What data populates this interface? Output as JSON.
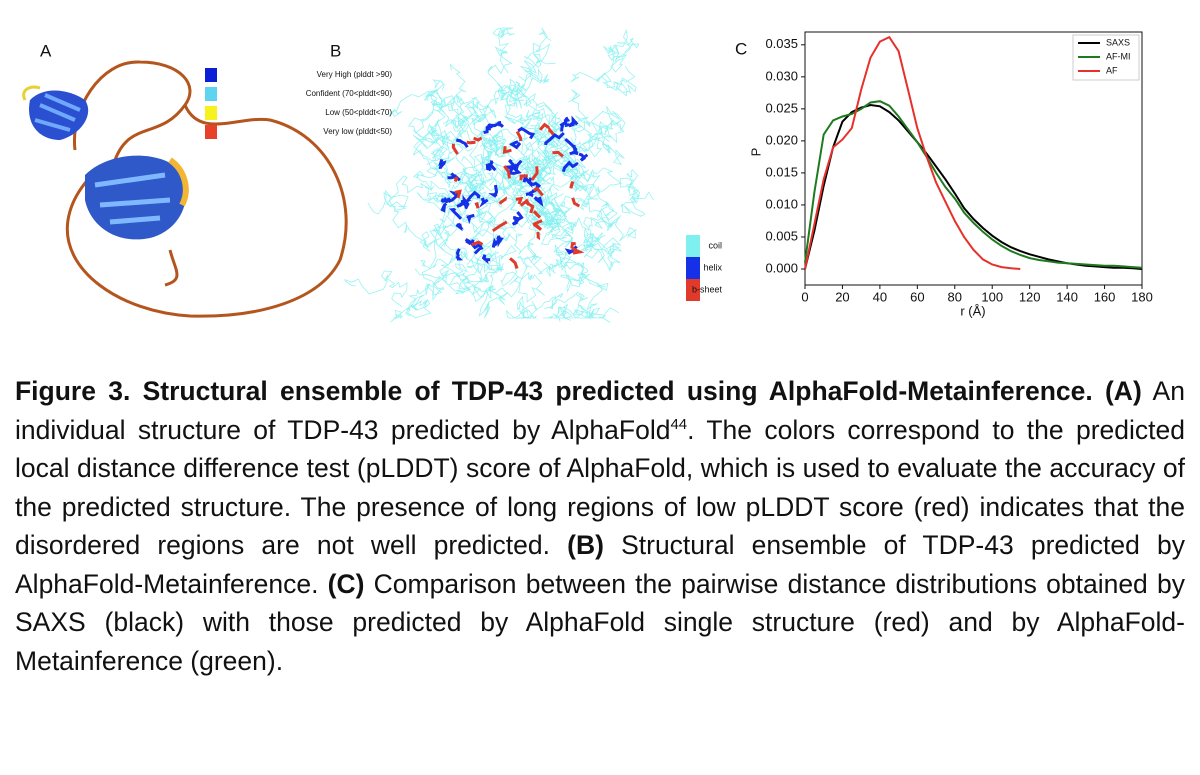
{
  "figure": {
    "panel_a": {
      "label": "A",
      "legend": [
        {
          "name": "Very High (plddt >90)",
          "color": "#0b1fd6"
        },
        {
          "name": "Confident (70<plddt<90)",
          "color": "#5fd4f0"
        },
        {
          "name": "Low (50<plddt<70)",
          "color": "#f7f21f"
        },
        {
          "name": "Very low (plddt<50)",
          "color": "#e8412b"
        }
      ]
    },
    "panel_b": {
      "label": "B",
      "legend": [
        {
          "name": "coil",
          "color": "#7ff0f0"
        },
        {
          "name": "helix",
          "color": "#1530e6"
        },
        {
          "name": "b-sheet",
          "color": "#e23a2a"
        }
      ]
    },
    "panel_c": {
      "label": "C"
    }
  },
  "chart_data": {
    "type": "line",
    "xlabel": "r (Å)",
    "ylabel": "P",
    "legend": "upper right",
    "x": [
      0,
      5,
      10,
      15,
      20,
      25,
      30,
      35,
      40,
      45,
      50,
      55,
      60,
      65,
      70,
      75,
      80,
      85,
      90,
      95,
      100,
      105,
      110,
      115,
      120,
      125,
      130,
      135,
      140,
      145,
      150,
      155,
      160,
      165,
      170,
      175,
      180
    ],
    "series": [
      {
        "name": "SAXS",
        "color": "#000000",
        "values": [
          0,
          0.006,
          0.013,
          0.019,
          0.023,
          0.0245,
          0.0252,
          0.0256,
          0.0254,
          0.0245,
          0.0232,
          0.0215,
          0.0198,
          0.018,
          0.016,
          0.014,
          0.0118,
          0.0095,
          0.0078,
          0.0064,
          0.0052,
          0.0042,
          0.0034,
          0.0028,
          0.0023,
          0.0019,
          0.0015,
          0.0012,
          0.0009,
          0.0007,
          0.0005,
          0.0004,
          0.0003,
          0.0002,
          0.0002,
          0.0001,
          0
        ]
      },
      {
        "name": "AF-MI",
        "color": "#1f7a1f",
        "values": [
          0.001,
          0.012,
          0.021,
          0.0232,
          0.0238,
          0.0242,
          0.025,
          0.026,
          0.0262,
          0.0255,
          0.0238,
          0.0218,
          0.0198,
          0.0175,
          0.015,
          0.0128,
          0.011,
          0.0088,
          0.0072,
          0.0058,
          0.0046,
          0.0036,
          0.0028,
          0.0022,
          0.0017,
          0.0014,
          0.0012,
          0.001,
          0.0009,
          0.0008,
          0.0007,
          0.0006,
          0.0005,
          0.0005,
          0.0004,
          0.0003,
          0.0002
        ]
      },
      {
        "name": "AF",
        "color": "#e8302a",
        "values": [
          0,
          0.007,
          0.014,
          0.019,
          0.0202,
          0.022,
          0.028,
          0.033,
          0.0355,
          0.0362,
          0.034,
          0.028,
          0.022,
          0.0175,
          0.0135,
          0.0105,
          0.0075,
          0.005,
          0.003,
          0.0015,
          0.0007,
          0.0003,
          0.0001,
          0,
          null,
          null,
          null,
          null,
          null,
          null,
          null,
          null,
          null,
          null,
          null,
          null,
          null
        ]
      }
    ],
    "xlim": [
      0,
      180
    ],
    "xticks": [
      0,
      20,
      40,
      60,
      80,
      100,
      120,
      140,
      160,
      180
    ],
    "ylim": [
      -0.0025,
      0.037
    ],
    "yticks": [
      {
        "value": 0,
        "label": "0.000"
      },
      0.005,
      {
        "value": 0.01,
        "label": "0.010"
      },
      0.015,
      {
        "value": 0.02,
        "label": "0.020"
      },
      0.025,
      {
        "value": 0.03,
        "label": "0.030"
      },
      0.035
    ]
  },
  "caption": {
    "runs": [
      {
        "text": "Figure 3. Structural ensemble of TDP-43 predicted using AlphaFold-Metainference. (A)",
        "bold": true
      },
      {
        "text": " An individual structure of TDP-43 predicted by AlphaFold"
      },
      {
        "text": "44",
        "sup": true
      },
      {
        "text": ". The colors correspond to the predicted local distance difference test (pLDDT) score of AlphaFold, which is used to evaluate the accuracy of the predicted structure. The presence of long regions of low pLDDT score (red) indicates that the disordered regions are not well predicted. "
      },
      {
        "text": "(B)",
        "bold": true
      },
      {
        "text": " Structural ensemble of TDP-43 predicted by AlphaFold-Metainference. "
      },
      {
        "text": "(C)",
        "bold": true
      },
      {
        "text": " Comparison between the pairwise distance distributions obtained by SAXS (black) with those predicted by AlphaFold single structure (red) and by AlphaFold-Metainference (green)."
      }
    ]
  }
}
